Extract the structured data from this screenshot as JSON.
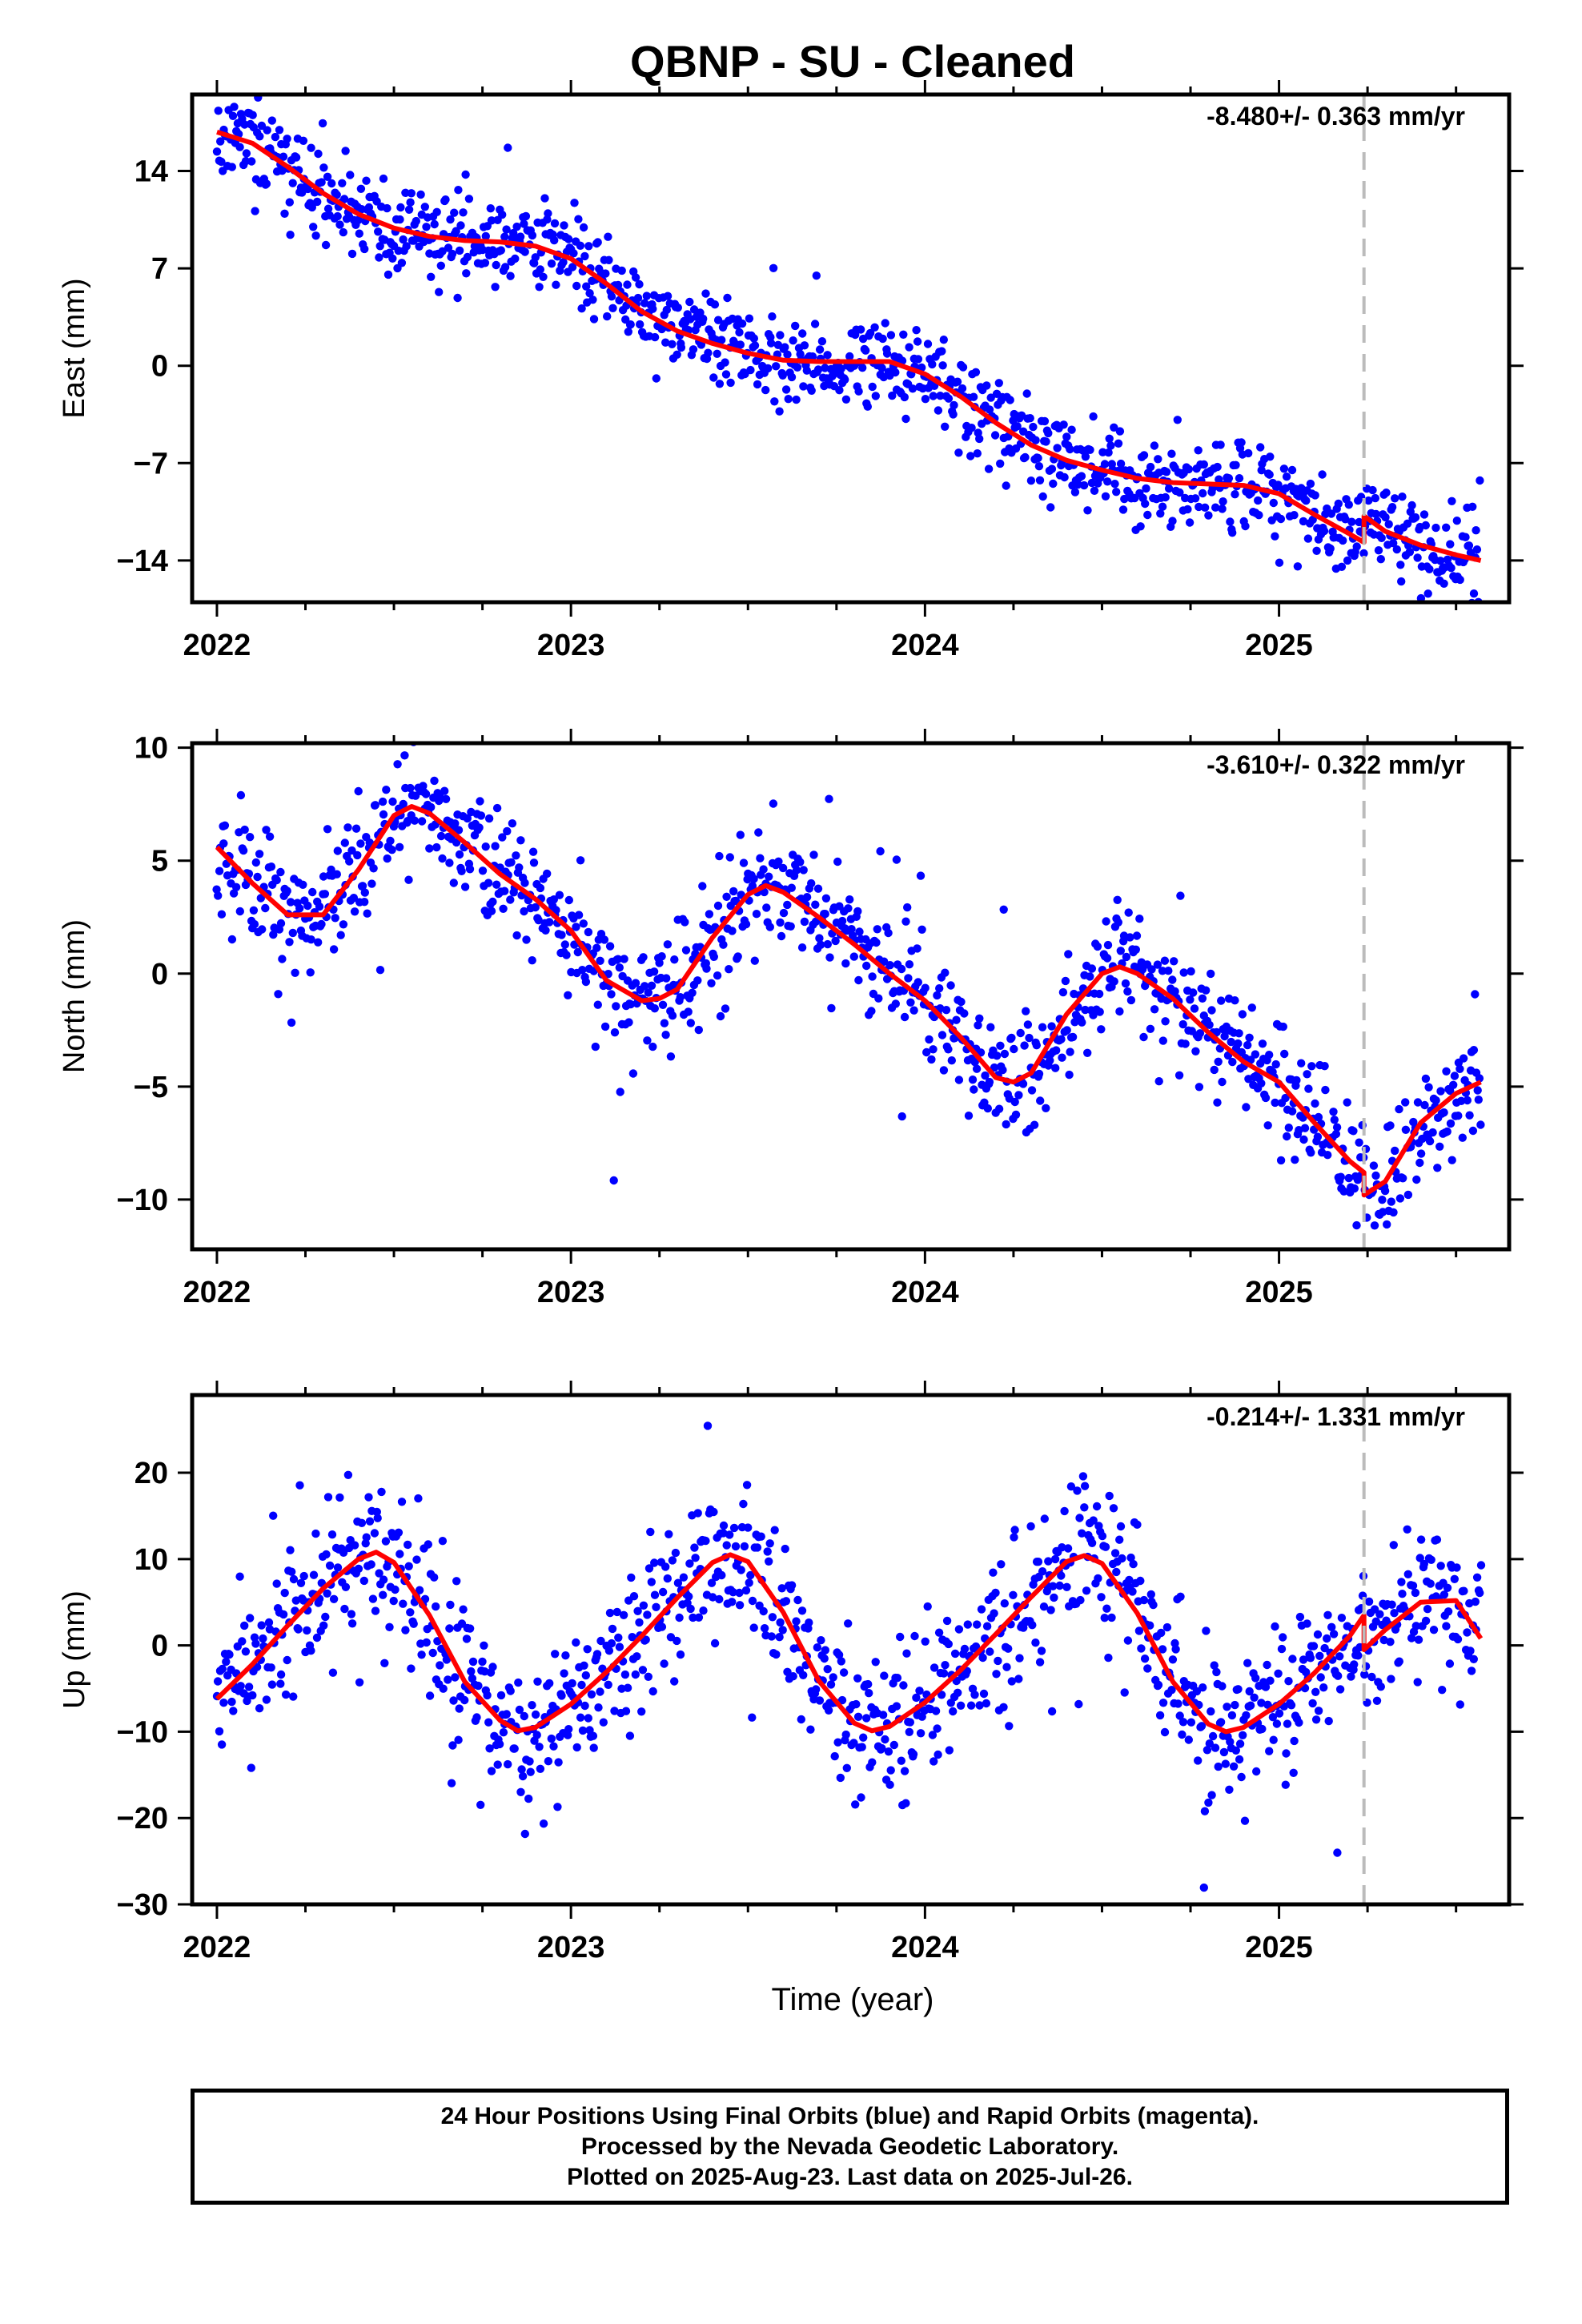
{
  "title": "QBNP  - SU - Cleaned",
  "xlabel": "Time (year)",
  "footer": {
    "line1": "24 Hour Positions Using Final Orbits (blue) and Rapid Orbits (magenta).",
    "line2": "Processed by the Nevada Geodetic Laboratory.",
    "line3": "Plotted on 2025-Aug-23. Last data on 2025-Jul-26."
  },
  "colors": {
    "points": "#0000ff",
    "fit": "#ff0000",
    "break_line": "#bbbbbb",
    "frame": "#000000"
  },
  "chart_data": [
    {
      "type": "scatter",
      "ylabel": "East (mm)",
      "rate": "-8.480+/- 0.363 mm/yr",
      "x_ticks": [
        "2022",
        "2023",
        "2024",
        "2025"
      ],
      "y_ticks": [
        "14",
        "7",
        "0",
        "−7",
        "−14"
      ],
      "y_tick_values": [
        14,
        7,
        0,
        -7,
        -14
      ],
      "xlim": [
        2021.93,
        2025.65
      ],
      "ylim": [
        -17,
        19.5
      ],
      "grid": false,
      "break_epoch": 2025.24,
      "fit": {
        "x": [
          2022.0,
          2022.1,
          2022.2,
          2022.3,
          2022.4,
          2022.5,
          2022.6,
          2022.7,
          2022.8,
          2022.9,
          2023.0,
          2023.1,
          2023.2,
          2023.3,
          2023.4,
          2023.5,
          2023.6,
          2023.7,
          2023.8,
          2023.9,
          2024.0,
          2024.1,
          2024.2,
          2024.3,
          2024.4,
          2024.5,
          2024.6,
          2024.7,
          2024.8,
          2024.9,
          2025.0,
          2025.1,
          2025.2,
          2025.24,
          2025.24,
          2025.3,
          2025.4,
          2025.5,
          2025.57
        ],
        "y": [
          16.8,
          16.0,
          14.3,
          12.4,
          10.9,
          9.9,
          9.3,
          9.0,
          8.9,
          8.6,
          7.7,
          5.9,
          3.9,
          2.5,
          1.6,
          0.9,
          0.4,
          0.3,
          0.3,
          0.3,
          -0.6,
          -2.2,
          -4.1,
          -5.7,
          -6.8,
          -7.5,
          -8.1,
          -8.4,
          -8.5,
          -8.6,
          -9.2,
          -10.7,
          -12.1,
          -12.7,
          -10.8,
          -11.9,
          -12.9,
          -13.6,
          -14.0
        ]
      },
      "scatter": {
        "n": 1100,
        "sigma": 1.6,
        "outlier_fraction": 0.03,
        "seed": 11
      }
    },
    {
      "type": "scatter",
      "ylabel": "North (mm)",
      "rate": "-3.610+/- 0.322 mm/yr",
      "x_ticks": [
        "2022",
        "2023",
        "2024",
        "2025"
      ],
      "y_ticks": [
        "10",
        "5",
        "0",
        "−5",
        "−10"
      ],
      "y_tick_values": [
        10,
        5,
        0,
        -5,
        -10
      ],
      "xlim": [
        2021.93,
        2025.65
      ],
      "ylim": [
        -12.2,
        10.2
      ],
      "grid": false,
      "break_epoch": 2025.24,
      "fit": {
        "x": [
          2022.0,
          2022.1,
          2022.2,
          2022.3,
          2022.4,
          2022.5,
          2022.55,
          2022.6,
          2022.7,
          2022.8,
          2022.9,
          2023.0,
          2023.1,
          2023.2,
          2023.25,
          2023.3,
          2023.4,
          2023.5,
          2023.55,
          2023.6,
          2023.7,
          2023.8,
          2023.9,
          2024.0,
          2024.1,
          2024.2,
          2024.25,
          2024.3,
          2024.4,
          2024.5,
          2024.55,
          2024.6,
          2024.7,
          2024.8,
          2024.9,
          2025.0,
          2025.1,
          2025.2,
          2025.24,
          2025.24,
          2025.3,
          2025.4,
          2025.5,
          2025.57
        ],
        "y": [
          5.6,
          4.0,
          2.6,
          2.6,
          4.6,
          7.0,
          7.4,
          7.1,
          5.8,
          4.4,
          3.3,
          1.9,
          -0.3,
          -1.2,
          -1.1,
          -0.7,
          1.6,
          3.5,
          3.9,
          3.6,
          2.5,
          1.3,
          0.0,
          -1.2,
          -2.8,
          -4.6,
          -4.8,
          -4.4,
          -1.8,
          0.0,
          0.3,
          0.0,
          -1.1,
          -2.6,
          -3.9,
          -4.8,
          -6.6,
          -8.3,
          -8.8,
          -9.8,
          -9.2,
          -6.6,
          -5.3,
          -4.8
        ]
      },
      "scatter": {
        "n": 1100,
        "sigma": 1.2,
        "outlier_fraction": 0.03,
        "seed": 23
      }
    },
    {
      "type": "scatter",
      "ylabel": "Up (mm)",
      "rate": "-0.214+/- 1.331 mm/yr",
      "x_ticks": [
        "2022",
        "2023",
        "2024",
        "2025"
      ],
      "y_ticks": [
        "20",
        "10",
        "0",
        "−10",
        "−20",
        "−30"
      ],
      "y_tick_values": [
        20,
        10,
        0,
        -10,
        -20,
        -30
      ],
      "xlim": [
        2021.93,
        2025.65
      ],
      "ylim": [
        -30,
        29
      ],
      "grid": false,
      "break_epoch": 2025.24,
      "fit": {
        "x": [
          2022.0,
          2022.1,
          2022.2,
          2022.3,
          2022.4,
          2022.45,
          2022.5,
          2022.6,
          2022.7,
          2022.8,
          2022.85,
          2022.9,
          2023.0,
          2023.1,
          2023.2,
          2023.3,
          2023.4,
          2023.45,
          2023.5,
          2023.6,
          2023.7,
          2023.8,
          2023.85,
          2023.9,
          2024.0,
          2024.1,
          2024.2,
          2024.3,
          2024.4,
          2024.45,
          2024.5,
          2024.6,
          2024.7,
          2024.8,
          2024.85,
          2024.9,
          2025.0,
          2025.1,
          2025.2,
          2025.24,
          2025.24,
          2025.3,
          2025.4,
          2025.5,
          2025.57
        ],
        "y": [
          -6.2,
          -2.2,
          2.3,
          6.6,
          10.0,
          10.8,
          9.6,
          3.5,
          -4.2,
          -8.7,
          -9.9,
          -9.5,
          -6.8,
          -3.1,
          1.1,
          5.5,
          9.6,
          10.5,
          9.7,
          3.8,
          -4.1,
          -9.0,
          -9.9,
          -9.4,
          -6.6,
          -2.9,
          1.3,
          5.6,
          9.7,
          10.4,
          9.5,
          3.7,
          -4.2,
          -9.1,
          -10.0,
          -9.5,
          -6.8,
          -3.2,
          1.1,
          3.5,
          -0.5,
          1.8,
          5.0,
          5.2,
          0.8
        ]
      },
      "scatter": {
        "n": 1100,
        "sigma": 4.2,
        "outlier_fraction": 0.04,
        "seed": 37
      }
    }
  ]
}
